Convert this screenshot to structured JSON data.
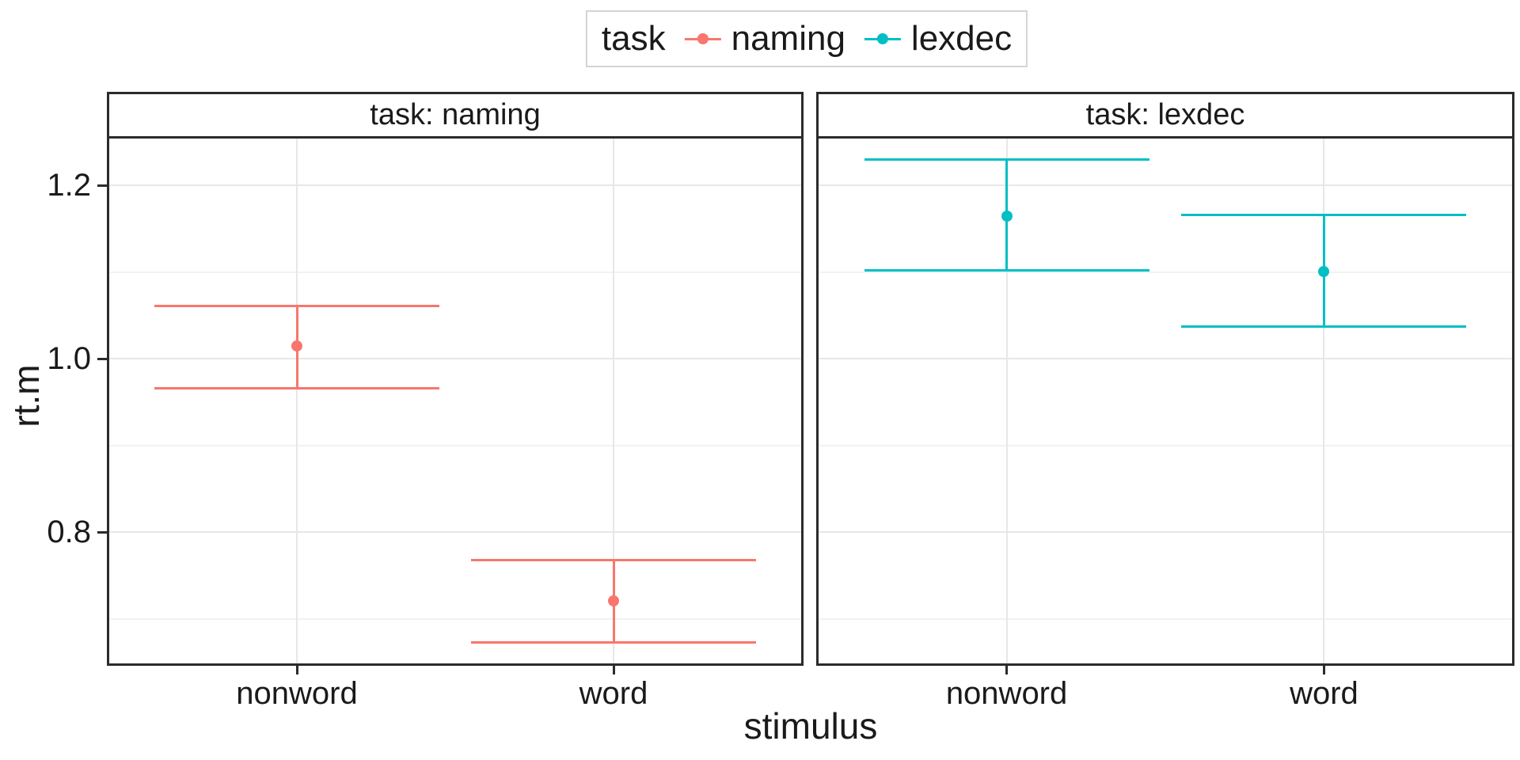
{
  "figure": {
    "background": "#ffffff"
  },
  "chart_data": {
    "type": "scatter",
    "subtype": "point-with-errorbars-faceted",
    "title": "",
    "xlabel": "stimulus",
    "ylabel": "rt.m",
    "categories": [
      "nonword",
      "word"
    ],
    "y_ticks": [
      0.8,
      1.0,
      1.2
    ],
    "y_tick_labels": [
      "0.8",
      "1.0",
      "1.2"
    ],
    "y_minor_gridlines": [
      0.7,
      0.9,
      1.1
    ],
    "ylim": [
      0.646,
      1.257
    ],
    "grid": true,
    "legend": {
      "title": "task",
      "position": "top-center",
      "entries": [
        {
          "label": "naming",
          "color": "#F8766D"
        },
        {
          "label": "lexdec",
          "color": "#00BFC4"
        }
      ]
    },
    "facets": [
      {
        "strip_label": "task: naming",
        "series": "naming",
        "color": "#F8766D",
        "points": [
          {
            "category": "nonword",
            "mean": 1.015,
            "ci_lower": 0.966,
            "ci_upper": 1.061
          },
          {
            "category": "word",
            "mean": 0.721,
            "ci_lower": 0.673,
            "ci_upper": 0.768
          }
        ]
      },
      {
        "strip_label": "task: lexdec",
        "series": "lexdec",
        "color": "#00BFC4",
        "points": [
          {
            "category": "nonword",
            "mean": 1.165,
            "ci_lower": 1.102,
            "ci_upper": 1.23
          },
          {
            "category": "word",
            "mean": 1.101,
            "ci_lower": 1.037,
            "ci_upper": 1.166
          }
        ]
      }
    ],
    "colors": {
      "panel_border": "#2b2b2b",
      "grid_major": "#e7e7e7",
      "grid_minor": "#f2f2f2",
      "text": "#1a1a1a",
      "legend_border": "#d4d4d4"
    }
  }
}
